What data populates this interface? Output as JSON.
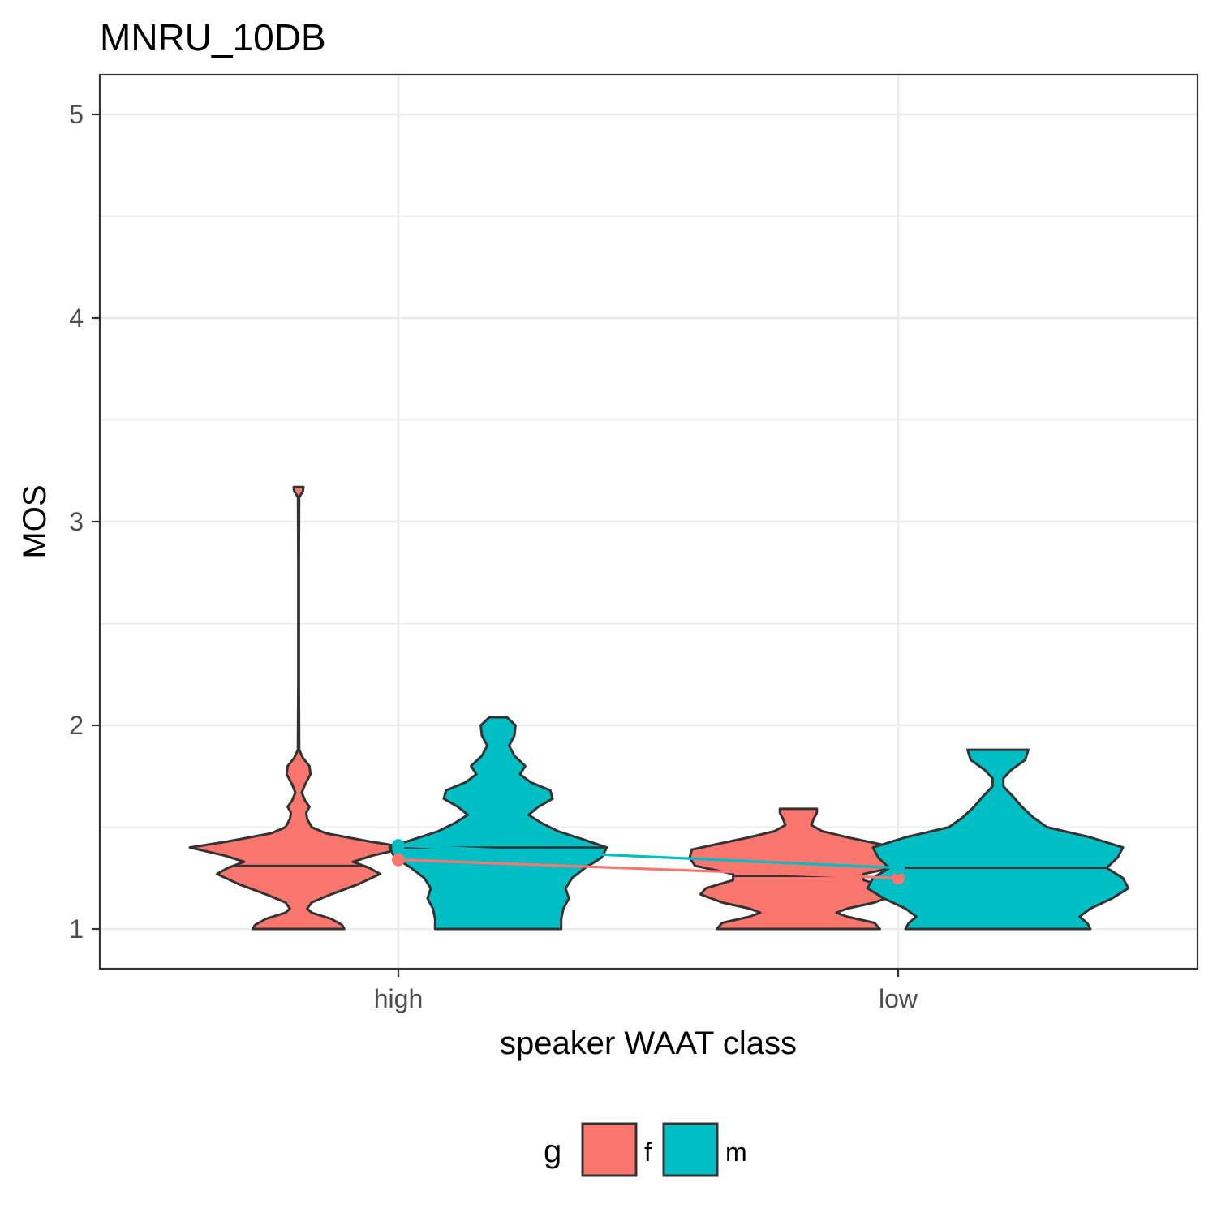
{
  "chart_data": {
    "type": "violin",
    "title": "MNRU_10DB",
    "xlabel": "speaker WAAT class",
    "ylabel": "MOS",
    "categories": [
      "high",
      "low"
    ],
    "ylim": [
      0.8,
      5.2
    ],
    "yticks": [
      1,
      2,
      3,
      4,
      5
    ],
    "grid": true,
    "legend": {
      "title": "g",
      "position": "bottom",
      "entries": [
        "f",
        "m"
      ]
    },
    "colors": {
      "f": "#F8766D",
      "m": "#00BFC4",
      "outline": "#333333"
    },
    "series": [
      {
        "name": "f",
        "color": "#F8766D",
        "means": [
          1.34,
          1.25
        ],
        "medians": [
          1.31,
          1.26
        ],
        "violins": [
          {
            "category": "high",
            "min": 1.0,
            "max": 3.17,
            "density": [
              [
                1.0,
                0.42
              ],
              [
                1.02,
                0.4
              ],
              [
                1.05,
                0.3
              ],
              [
                1.08,
                0.12
              ],
              [
                1.1,
                0.08
              ],
              [
                1.13,
                0.12
              ],
              [
                1.17,
                0.3
              ],
              [
                1.22,
                0.55
              ],
              [
                1.27,
                0.75
              ],
              [
                1.3,
                0.65
              ],
              [
                1.33,
                0.5
              ],
              [
                1.36,
                0.68
              ],
              [
                1.4,
                1.0
              ],
              [
                1.43,
                0.65
              ],
              [
                1.47,
                0.25
              ],
              [
                1.5,
                0.12
              ],
              [
                1.54,
                0.08
              ],
              [
                1.57,
                0.07
              ],
              [
                1.6,
                0.1
              ],
              [
                1.63,
                0.06
              ],
              [
                1.67,
                0.03
              ],
              [
                1.71,
                0.06
              ],
              [
                1.76,
                0.11
              ],
              [
                1.8,
                0.1
              ],
              [
                1.84,
                0.04
              ],
              [
                1.88,
                0.006
              ],
              [
                2.2,
                0.003
              ],
              [
                2.8,
                0.003
              ],
              [
                3.12,
                0.005
              ],
              [
                3.15,
                0.04
              ],
              [
                3.17,
                0.045
              ]
            ]
          },
          {
            "category": "low",
            "min": 1.0,
            "max": 1.59,
            "density": [
              [
                1.0,
                0.75
              ],
              [
                1.03,
                0.7
              ],
              [
                1.06,
                0.45
              ],
              [
                1.08,
                0.35
              ],
              [
                1.1,
                0.45
              ],
              [
                1.13,
                0.7
              ],
              [
                1.17,
                0.9
              ],
              [
                1.2,
                0.85
              ],
              [
                1.24,
                0.6
              ],
              [
                1.27,
                0.6
              ],
              [
                1.31,
                0.95
              ],
              [
                1.35,
                1.0
              ],
              [
                1.39,
                0.98
              ],
              [
                1.42,
                0.72
              ],
              [
                1.45,
                0.45
              ],
              [
                1.48,
                0.22
              ],
              [
                1.51,
                0.12
              ],
              [
                1.54,
                0.14
              ],
              [
                1.57,
                0.17
              ],
              [
                1.59,
                0.17
              ]
            ]
          }
        ]
      },
      {
        "name": "m",
        "color": "#00BFC4",
        "means": [
          1.41,
          1.3
        ],
        "medians": [
          1.4,
          1.3
        ],
        "violins": [
          {
            "category": "high",
            "min": 1.0,
            "max": 2.04,
            "density": [
              [
                1.0,
                0.58
              ],
              [
                1.05,
                0.58
              ],
              [
                1.1,
                0.6
              ],
              [
                1.15,
                0.65
              ],
              [
                1.2,
                0.62
              ],
              [
                1.25,
                0.68
              ],
              [
                1.3,
                0.8
              ],
              [
                1.35,
                0.95
              ],
              [
                1.4,
                1.0
              ],
              [
                1.44,
                0.78
              ],
              [
                1.48,
                0.55
              ],
              [
                1.52,
                0.4
              ],
              [
                1.56,
                0.28
              ],
              [
                1.6,
                0.37
              ],
              [
                1.64,
                0.5
              ],
              [
                1.68,
                0.48
              ],
              [
                1.72,
                0.3
              ],
              [
                1.76,
                0.2
              ],
              [
                1.8,
                0.25
              ],
              [
                1.85,
                0.15
              ],
              [
                1.9,
                0.1
              ],
              [
                1.95,
                0.15
              ],
              [
                2.0,
                0.16
              ],
              [
                2.02,
                0.12
              ],
              [
                2.04,
                0.08
              ]
            ]
          },
          {
            "category": "low",
            "min": 1.0,
            "max": 1.88,
            "density": [
              [
                1.0,
                0.85
              ],
              [
                1.03,
                0.82
              ],
              [
                1.06,
                0.75
              ],
              [
                1.1,
                0.85
              ],
              [
                1.15,
                1.05
              ],
              [
                1.2,
                1.2
              ],
              [
                1.25,
                1.15
              ],
              [
                1.3,
                1.0
              ],
              [
                1.35,
                1.1
              ],
              [
                1.4,
                1.15
              ],
              [
                1.45,
                0.85
              ],
              [
                1.5,
                0.45
              ],
              [
                1.55,
                0.32
              ],
              [
                1.6,
                0.22
              ],
              [
                1.65,
                0.14
              ],
              [
                1.7,
                0.05
              ],
              [
                1.74,
                0.05
              ],
              [
                1.78,
                0.12
              ],
              [
                1.83,
                0.25
              ],
              [
                1.88,
                0.28
              ]
            ]
          }
        ]
      }
    ]
  }
}
